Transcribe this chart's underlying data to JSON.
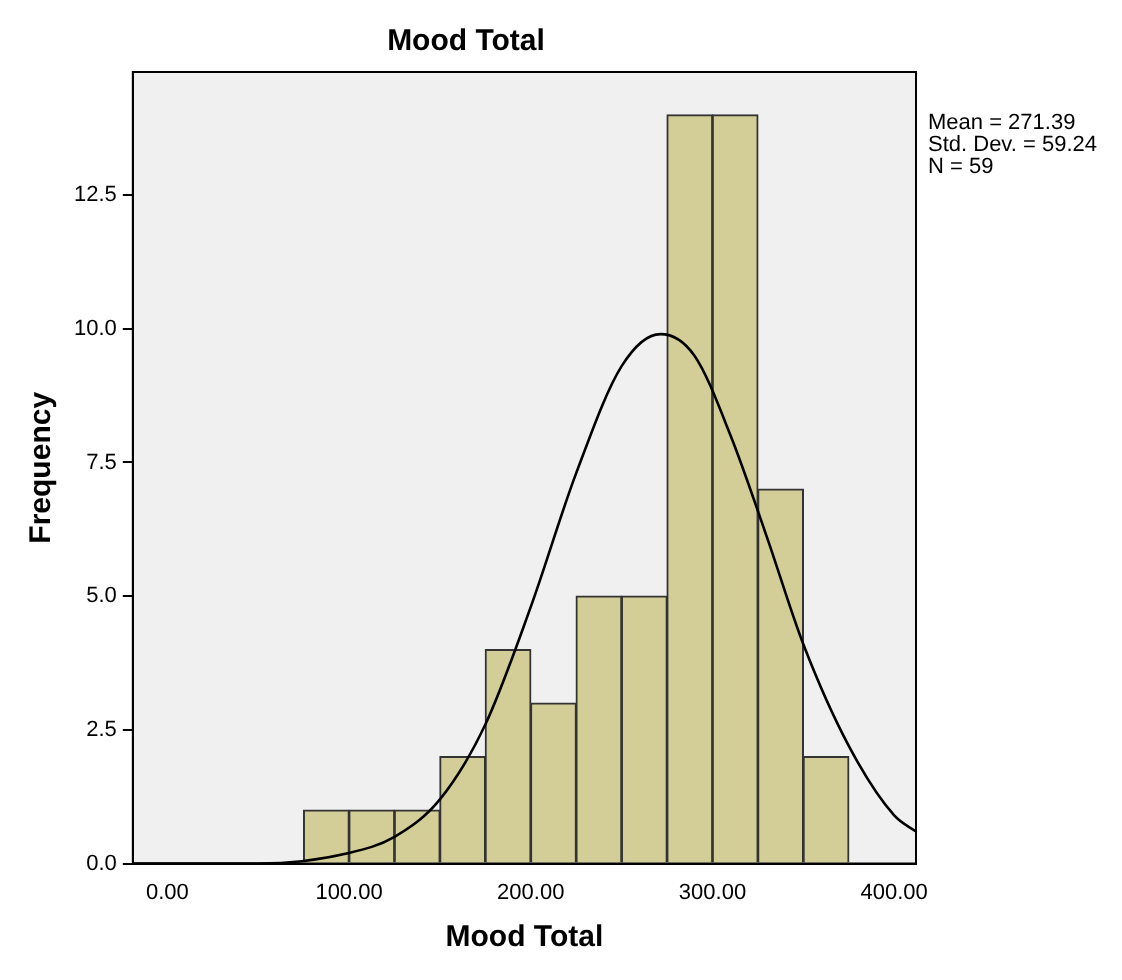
{
  "chart_data": {
    "type": "histogram",
    "title": "Mood Total",
    "xlabel": "Mood Total",
    "ylabel": "Frequency",
    "bins": [
      75,
      100,
      125,
      150,
      175,
      200,
      225,
      250,
      275,
      300,
      325,
      350,
      375
    ],
    "values": [
      1,
      1,
      1,
      2,
      4,
      3,
      5,
      5,
      14,
      14,
      7,
      2
    ],
    "color": "#d3ce97",
    "series": [
      {
        "type": "line",
        "color": "#000000",
        "x": [
          -19,
          0,
          50,
          100,
          125,
          150,
          175,
          200,
          225,
          250,
          271.4,
          290,
          310,
          330,
          350,
          375,
          400,
          412
        ],
        "values": [
          0,
          0,
          0,
          0.2,
          0.5,
          1.2,
          2.6,
          4.8,
          7.3,
          9.3,
          9.9,
          9.5,
          8.0,
          6.1,
          4.1,
          2.2,
          0.9,
          0.6
        ]
      }
    ],
    "xlim": [
      -19,
      412
    ],
    "xticks": [
      {
        "value": 0,
        "label": "0.00"
      },
      {
        "value": 100,
        "label": "100.00"
      },
      {
        "value": 200,
        "label": "200.00"
      },
      {
        "value": 300,
        "label": "300.00"
      },
      {
        "value": 400,
        "label": "400.00"
      }
    ],
    "ylim": [
      0,
      14.8
    ],
    "yticks": [
      {
        "value": 0,
        "label": "0.0"
      },
      {
        "value": 2.5,
        "label": "2.5"
      },
      {
        "value": 5,
        "label": "5.0"
      },
      {
        "value": 7.5,
        "label": "7.5"
      },
      {
        "value": 10,
        "label": "10.0"
      },
      {
        "value": 12.5,
        "label": "12.5"
      }
    ],
    "grid": false,
    "legend": false,
    "marker": "none",
    "annotations": [
      "Mean = 271.39",
      "Std. Dev. = 59.24",
      "N = 59"
    ]
  }
}
